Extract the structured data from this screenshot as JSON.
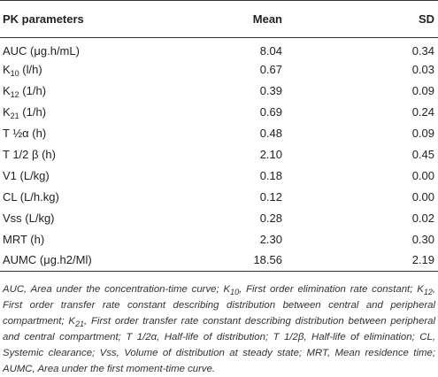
{
  "table": {
    "headers": {
      "parameter": "PK parameters",
      "mean": "Mean",
      "sd": "SD"
    },
    "rows": [
      {
        "base": "AUC (μg.h/mL)",
        "sub": "",
        "suffix": "",
        "mean": "8.04",
        "sd": "0.34"
      },
      {
        "base": "K",
        "sub": "10",
        "suffix": " (l/h)",
        "mean": "0.67",
        "sd": "0.03"
      },
      {
        "base": "K",
        "sub": "12",
        "suffix": " (1/h)",
        "mean": "0.39",
        "sd": "0.09"
      },
      {
        "base": "K",
        "sub": "21",
        "suffix": " (1/h)",
        "mean": "0.69",
        "sd": "0.24"
      },
      {
        "base": "T ½α (h)",
        "sub": "",
        "suffix": "",
        "mean": "0.48",
        "sd": "0.09"
      },
      {
        "base": "T 1/2 β (h)",
        "sub": "",
        "suffix": "",
        "mean": "2.10",
        "sd": "0.45"
      },
      {
        "base": "V1 (L/kg)",
        "sub": "",
        "suffix": "",
        "mean": "0.18",
        "sd": "0.00"
      },
      {
        "base": "CL (L/h.kg)",
        "sub": "",
        "suffix": "",
        "mean": "0.12",
        "sd": "0.00"
      },
      {
        "base": "Vss (L/kg)",
        "sub": "",
        "suffix": "",
        "mean": "0.28",
        "sd": "0.02"
      },
      {
        "base": "MRT (h)",
        "sub": "",
        "suffix": "",
        "mean": "2.30",
        "sd": "0.30"
      },
      {
        "base": "AUMC (μg.h2/Ml)",
        "sub": "",
        "suffix": "",
        "mean": "18.56",
        "sd": "2.19"
      }
    ]
  },
  "footnote": {
    "p1": "AUC, Area under the concentration-time curve; K",
    "s1": "10",
    "p2": ", First order elimination rate constant; K",
    "s2": "12",
    "p3": ", First order transfer rate constant describing distribution between central and peripheral compartment; K",
    "s3": "21",
    "p4": ", First order transfer rate constant describing distribution between peripheral and central compartment; T 1/2α, Half-life of distribution; T 1/2β, Half-life of elimination; CL, Systemic clearance; Vss, Volume of distribution at steady state; MRT, Mean residence time; AUMC, Area under the first moment-time curve."
  }
}
